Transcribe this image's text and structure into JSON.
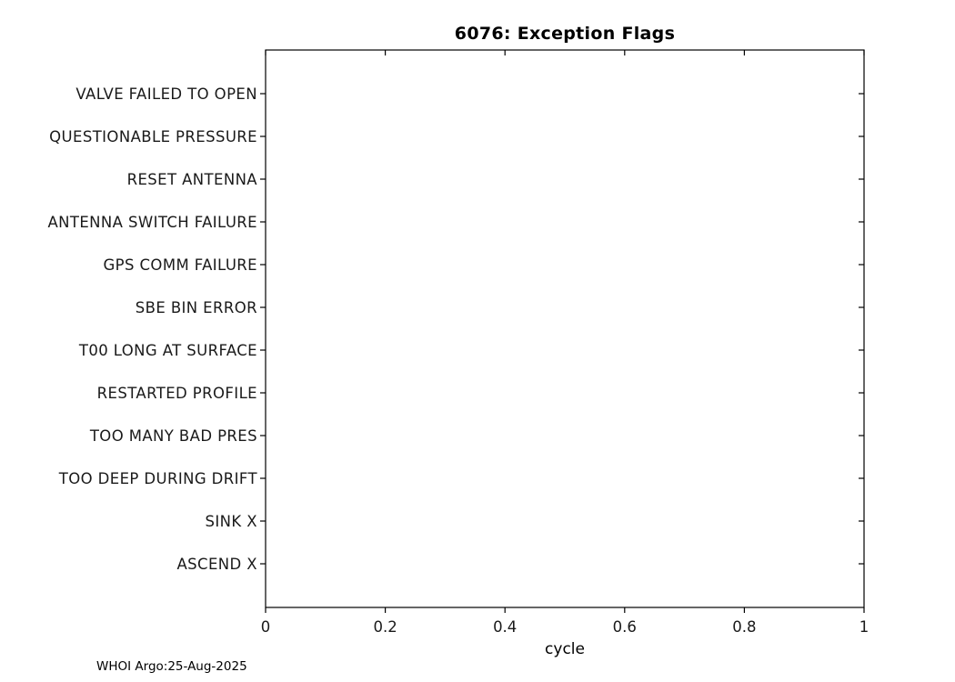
{
  "chart_data": {
    "type": "scatter",
    "title": "6076: Exception Flags",
    "xlabel": "cycle",
    "ylabel": "",
    "xlim": [
      0,
      1
    ],
    "x_ticks": [
      0,
      0.2,
      0.4,
      0.6,
      0.8,
      1
    ],
    "x_tick_labels": [
      "0",
      "0.2",
      "0.4",
      "0.6",
      "0.8",
      "1"
    ],
    "categories": [
      "VALVE FAILED TO OPEN",
      "QUESTIONABLE PRESSURE",
      "RESET ANTENNA",
      "ANTENNA SWITCH FAILURE",
      "GPS COMM FAILURE",
      "SBE BIN ERROR",
      "T00 LONG AT SURFACE",
      "RESTARTED PROFILE",
      "TOO MANY BAD PRES",
      "TOO DEEP DURING DRIFT",
      "SINK X",
      "ASCEND X"
    ],
    "series": [],
    "grid": false,
    "legend": null,
    "axis_color": "#000000",
    "background_color": "#ffffff"
  },
  "footer": {
    "text": "WHOI Argo:25-Aug-2025"
  }
}
